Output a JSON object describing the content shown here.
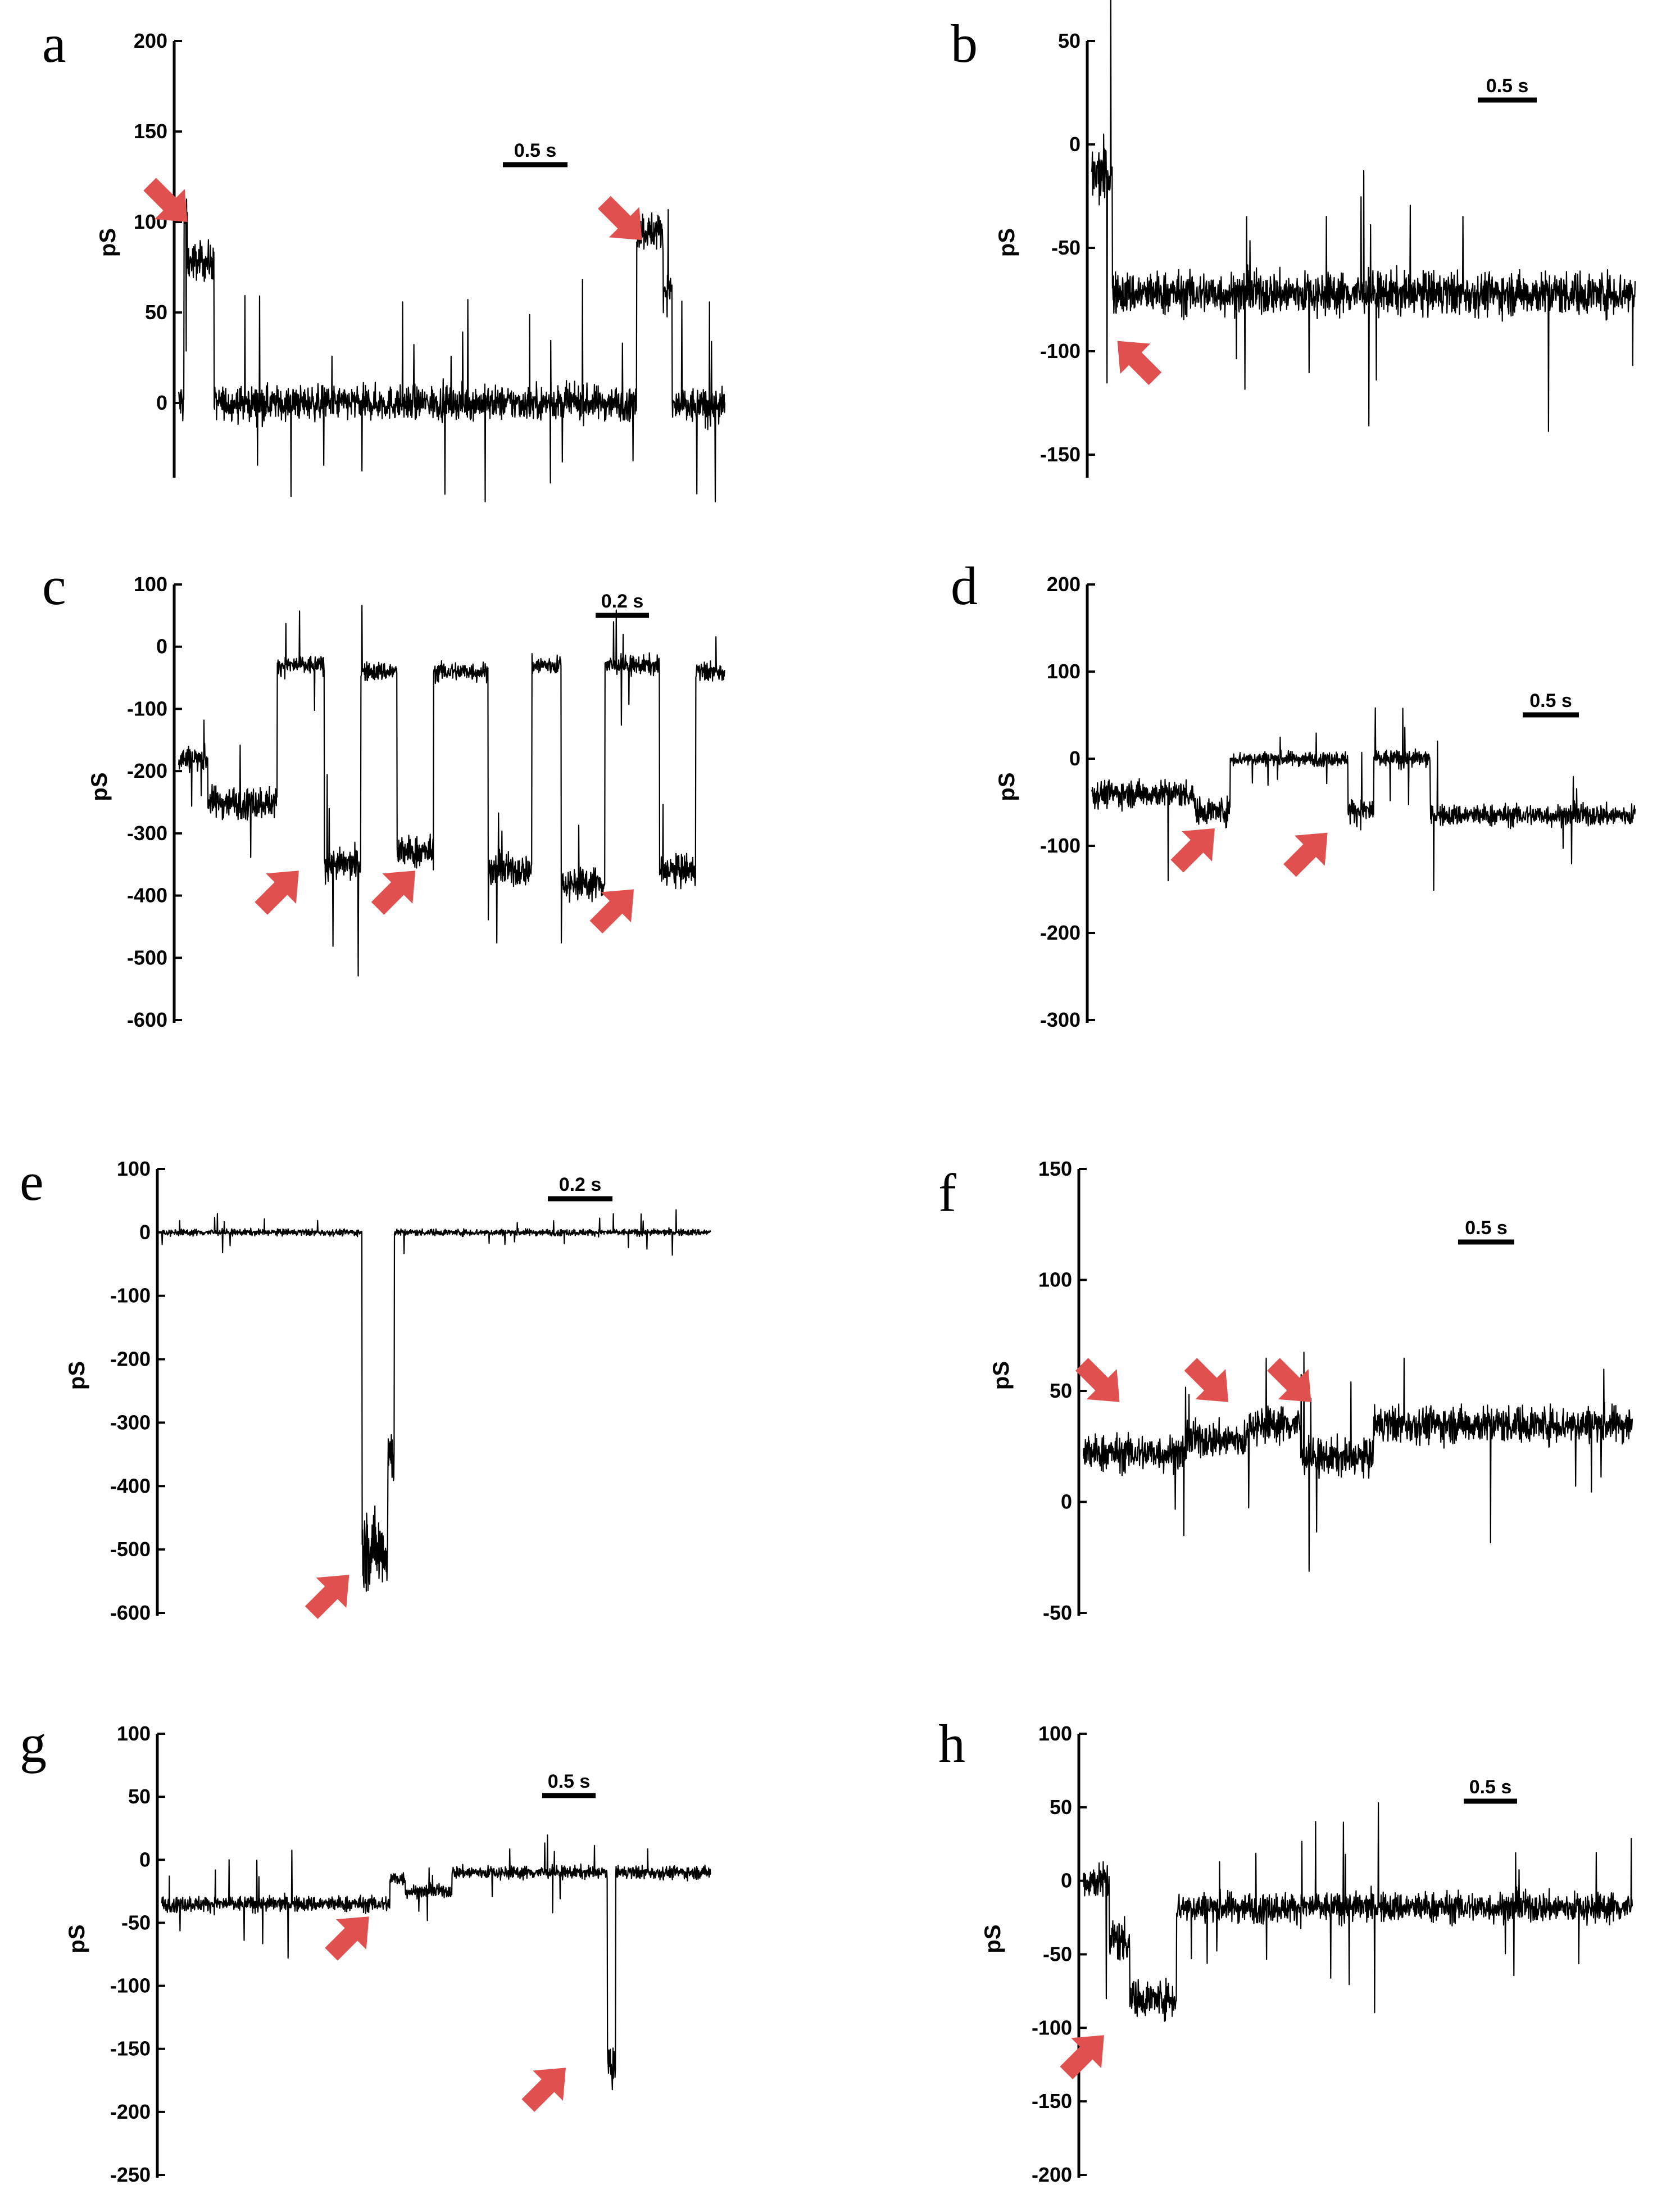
{
  "colors": {
    "trace": "#000000",
    "arrow": "#e0504f",
    "axis": "#000000"
  },
  "chart_data": [
    {
      "type": "line",
      "panel": "a",
      "ylabel": "pS",
      "yticks": [
        200,
        150,
        100,
        50,
        0
      ],
      "ylim": [
        -40,
        200
      ],
      "scale_bar": "0.5 s",
      "duration_s": 3.1,
      "segments": [
        [
          0,
          0.03,
          0,
          12
        ],
        [
          0.03,
          0.05,
          100,
          12
        ],
        [
          0.05,
          0.2,
          78,
          10
        ],
        [
          0.2,
          2.6,
          0,
          9
        ],
        [
          2.6,
          2.75,
          95,
          10
        ],
        [
          2.75,
          2.8,
          62,
          10
        ],
        [
          2.8,
          3.1,
          -2,
          10
        ]
      ],
      "arrows": [
        [
          0.05,
          100,
          "down-right"
        ],
        [
          2.63,
          90,
          "down-right"
        ]
      ]
    },
    {
      "type": "line",
      "panel": "b",
      "ylabel": "pS",
      "yticks": [
        50,
        0,
        -50,
        -100,
        -150
      ],
      "ylim": [
        -160,
        50
      ],
      "scale_bar": "0.5 s",
      "duration_s": 5.3,
      "segments": [
        [
          0,
          0.2,
          -15,
          14
        ],
        [
          0.2,
          5.3,
          -72,
          10
        ]
      ],
      "arrows": [
        [
          0.25,
          -95,
          "up-left"
        ]
      ]
    },
    {
      "type": "line",
      "panel": "c",
      "ylabel": "pS",
      "yticks": [
        100,
        0,
        -100,
        -200,
        -300,
        -400,
        -500,
        -600
      ],
      "ylim": [
        -600,
        100
      ],
      "scale_bar": "0.2 s",
      "duration_s": 1.5,
      "segments": [
        [
          0,
          0.08,
          -180,
          20
        ],
        [
          0.08,
          0.27,
          -250,
          25
        ],
        [
          0.27,
          0.4,
          -30,
          15
        ],
        [
          0.4,
          0.5,
          -350,
          25
        ],
        [
          0.5,
          0.6,
          -40,
          15
        ],
        [
          0.6,
          0.7,
          -330,
          25
        ],
        [
          0.7,
          0.85,
          -40,
          15
        ],
        [
          0.85,
          0.97,
          -360,
          25
        ],
        [
          0.97,
          1.05,
          -30,
          15
        ],
        [
          1.05,
          1.17,
          -380,
          25
        ],
        [
          1.17,
          1.32,
          -30,
          15
        ],
        [
          1.32,
          1.42,
          -360,
          25
        ],
        [
          1.42,
          1.5,
          -40,
          15
        ]
      ],
      "arrows": [
        [
          0.33,
          -360,
          "up-right"
        ],
        [
          0.65,
          -360,
          "up-right"
        ],
        [
          1.25,
          -390,
          "up-right"
        ]
      ]
    },
    {
      "type": "line",
      "panel": "d",
      "ylabel": "pS",
      "yticks": [
        200,
        100,
        0,
        -100,
        -200,
        -300
      ],
      "ylim": [
        -300,
        200
      ],
      "scale_bar": "0.5 s",
      "duration_s": 5.3,
      "segments": [
        [
          0,
          1.0,
          -40,
          15
        ],
        [
          1.0,
          1.35,
          -60,
          15
        ],
        [
          1.35,
          2.5,
          0,
          8
        ],
        [
          2.5,
          2.75,
          -60,
          15
        ],
        [
          2.75,
          3.3,
          0,
          10
        ],
        [
          3.3,
          5.3,
          -65,
          12
        ]
      ],
      "arrows": [
        [
          1.2,
          -80,
          "up-right"
        ],
        [
          2.3,
          -85,
          "up-right"
        ]
      ]
    },
    {
      "type": "line",
      "panel": "e",
      "ylabel": "pS",
      "yticks": [
        100,
        0,
        -100,
        -200,
        -300,
        -400,
        -500,
        -600
      ],
      "ylim": [
        -600,
        100
      ],
      "scale_bar": "0.2 s",
      "duration_s": 1.7,
      "segments": [
        [
          0,
          0.62,
          0,
          5
        ],
        [
          0.62,
          0.7,
          -500,
          60
        ],
        [
          0.7,
          0.72,
          -350,
          50
        ],
        [
          0.72,
          1.7,
          0,
          5
        ]
      ],
      "arrows": [
        [
          0.58,
          -540,
          "up-right"
        ]
      ]
    },
    {
      "type": "line",
      "panel": "f",
      "ylabel": "pS",
      "yticks": [
        150,
        100,
        50,
        0,
        -50
      ],
      "ylim": [
        -50,
        150
      ],
      "scale_bar": "0.5 s",
      "duration_s": 5.3,
      "segments": [
        [
          0,
          1.0,
          22,
          8
        ],
        [
          1.0,
          1.6,
          28,
          8
        ],
        [
          1.6,
          2.1,
          35,
          8
        ],
        [
          2.1,
          2.8,
          20,
          8
        ],
        [
          2.8,
          5.3,
          35,
          8
        ]
      ],
      "arrows": [
        [
          0.35,
          45,
          "down-right"
        ],
        [
          1.4,
          45,
          "down-right"
        ],
        [
          2.2,
          45,
          "down-right"
        ]
      ]
    },
    {
      "type": "line",
      "panel": "g",
      "ylabel": "pS",
      "yticks": [
        100,
        50,
        0,
        -50,
        -100,
        -150,
        -200,
        -250
      ],
      "ylim": [
        -250,
        100
      ],
      "scale_bar": "0.5 s",
      "duration_s": 5.3,
      "segments": [
        [
          0,
          2.2,
          -35,
          6
        ],
        [
          2.2,
          2.35,
          -15,
          6
        ],
        [
          2.35,
          2.8,
          -25,
          5
        ],
        [
          2.8,
          4.3,
          -10,
          5
        ],
        [
          4.3,
          4.38,
          -165,
          15
        ],
        [
          4.38,
          5.3,
          -10,
          5
        ]
      ],
      "arrows": [
        [
          2.0,
          -45,
          "up-right"
        ],
        [
          3.9,
          -165,
          "up-right"
        ]
      ]
    },
    {
      "type": "line",
      "panel": "h",
      "ylabel": "pS",
      "yticks": [
        100,
        50,
        0,
        -50,
        -100,
        -150,
        -200
      ],
      "ylim": [
        -200,
        100
      ],
      "scale_bar": "0.5 s",
      "duration_s": 5.3,
      "segments": [
        [
          0,
          0.25,
          0,
          12
        ],
        [
          0.25,
          0.45,
          -40,
          15
        ],
        [
          0.45,
          0.9,
          -80,
          12
        ],
        [
          0.9,
          5.3,
          -18,
          10
        ]
      ],
      "arrows": [
        [
          0.2,
          -105,
          "up-right"
        ]
      ]
    }
  ],
  "panels": [
    {
      "letter": "a",
      "ylabel": "pS",
      "scale_bar": "0.5 s",
      "ticks": [
        "200",
        "150",
        "100",
        "50",
        "0"
      ]
    },
    {
      "letter": "b",
      "ylabel": "pS",
      "scale_bar": "0.5 s",
      "ticks": [
        "50",
        "0",
        "-50",
        "-100",
        "-150"
      ]
    },
    {
      "letter": "c",
      "ylabel": "pS",
      "scale_bar": "0.2 s",
      "ticks": [
        "100",
        "0",
        "-100",
        "-200",
        "-300",
        "-400",
        "-500",
        "-600"
      ]
    },
    {
      "letter": "d",
      "ylabel": "pS",
      "scale_bar": "0.5 s",
      "ticks": [
        "200",
        "100",
        "0",
        "-100",
        "-200",
        "-300"
      ]
    },
    {
      "letter": "e",
      "ylabel": "pS",
      "scale_bar": "0.2 s",
      "ticks": [
        "100",
        "0",
        "-100",
        "-200",
        "-300",
        "-400",
        "-500",
        "-600"
      ]
    },
    {
      "letter": "f",
      "ylabel": "pS",
      "scale_bar": "0.5 s",
      "ticks": [
        "150",
        "100",
        "50",
        "0",
        "-50"
      ]
    },
    {
      "letter": "g",
      "ylabel": "pS",
      "scale_bar": "0.5 s",
      "ticks": [
        "100",
        "50",
        "0",
        "-50",
        "-100",
        "-150",
        "-200",
        "-250"
      ]
    },
    {
      "letter": "h",
      "ylabel": "pS",
      "scale_bar": "0.5 s",
      "ticks": [
        "100",
        "50",
        "0",
        "-50",
        "-100",
        "-150",
        "-200"
      ]
    }
  ]
}
